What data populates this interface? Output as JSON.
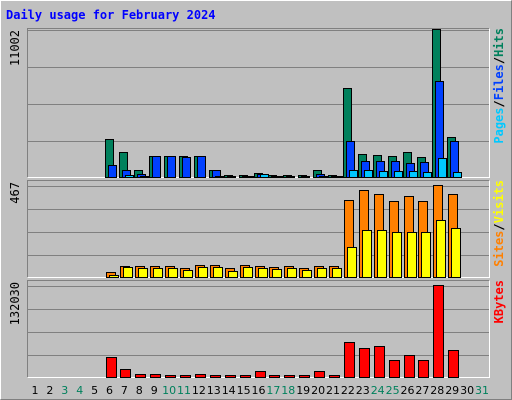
{
  "chart_data": {
    "type": "bar",
    "title": "Daily usage for February 2024",
    "colors": {
      "background": "#c0c0c0",
      "title": "#0000ff",
      "hits": "#00805c",
      "files": "#0040ff",
      "pages": "#00c8ff",
      "visits": "#ffff00",
      "sites": "#ff8000",
      "kbytes": "#ff0000",
      "weekend_label": "#00805c",
      "day_label": "#000000"
    },
    "days": [
      "1",
      "2",
      "3",
      "4",
      "5",
      "6",
      "7",
      "8",
      "9",
      "10",
      "11",
      "12",
      "13",
      "14",
      "15",
      "16",
      "17",
      "18",
      "19",
      "20",
      "21",
      "22",
      "23",
      "24",
      "25",
      "26",
      "27",
      "28",
      "29",
      "30",
      "31"
    ],
    "weekend_days": [
      "3",
      "4",
      "10",
      "11",
      "17",
      "18",
      "24",
      "25",
      "31"
    ],
    "panels": [
      {
        "name": "hits-files-pages",
        "max_label": "11002",
        "ylim": [
          0,
          11002
        ],
        "legend": [
          {
            "text": "Pages",
            "color_key": "pages"
          },
          {
            "text": "/",
            "color_key": "day_label"
          },
          {
            "text": "Files",
            "color_key": "files"
          },
          {
            "text": "/",
            "color_key": "day_label"
          },
          {
            "text": "Hits",
            "color_key": "hits"
          }
        ],
        "series": [
          {
            "name": "Hits",
            "color_key": "hits",
            "values": [
              0,
              0,
              0,
              0,
              0,
              2800,
              1850,
              500,
              1550,
              1550,
              1550,
              1550,
              550,
              150,
              150,
              330,
              150,
              150,
              150,
              550,
              150,
              6600,
              1700,
              1650,
              1550,
              1850,
              1450,
              11002,
              3000,
              0,
              0
            ]
          },
          {
            "name": "Files",
            "color_key": "files",
            "values": [
              0,
              0,
              0,
              0,
              0,
              900,
              500,
              250,
              1550,
              1550,
              1500,
              1550,
              500,
              100,
              100,
              200,
              100,
              100,
              100,
              250,
              100,
              2650,
              1200,
              1200,
              1200,
              1050,
              1100,
              7100,
              2650,
              0,
              0
            ]
          },
          {
            "name": "Pages",
            "color_key": "pages",
            "values": [
              0,
              0,
              0,
              0,
              0,
              0,
              150,
              100,
              0,
              0,
              0,
              0,
              50,
              0,
              50,
              250,
              50,
              0,
              0,
              100,
              50,
              550,
              500,
              450,
              450,
              450,
              400,
              1400,
              400,
              0,
              0
            ]
          }
        ]
      },
      {
        "name": "sites-visits",
        "max_label": "467",
        "ylim": [
          0,
          467
        ],
        "legend": [
          {
            "text": "Sites",
            "color_key": "sites"
          },
          {
            "text": "/",
            "color_key": "day_label"
          },
          {
            "text": "Visits",
            "color_key": "visits"
          }
        ],
        "series": [
          {
            "name": "Sites",
            "color_key": "sites",
            "values": [
              0,
              0,
              0,
              0,
              0,
              25,
              55,
              55,
              55,
              55,
              45,
              60,
              60,
              45,
              60,
              55,
              50,
              55,
              45,
              55,
              55,
              390,
              440,
              420,
              385,
              410,
              385,
              467,
              420,
              0,
              0
            ]
          },
          {
            "name": "Visits",
            "color_key": "visits",
            "values": [
              0,
              0,
              0,
              0,
              0,
              12,
              50,
              45,
              45,
              45,
              35,
              50,
              50,
              30,
              50,
              45,
              40,
              45,
              35,
              45,
              45,
              150,
              240,
              240,
              230,
              230,
              230,
              290,
              250,
              0,
              0
            ]
          }
        ]
      },
      {
        "name": "kbytes",
        "max_label": "132030",
        "ylim": [
          0,
          132030
        ],
        "legend": [
          {
            "text": "KBytes",
            "color_key": "kbytes"
          }
        ],
        "series": [
          {
            "name": "KBytes",
            "color_key": "kbytes",
            "values": [
              0,
              0,
              0,
              0,
              0,
              28000,
              11000,
              4000,
              4000,
              3000,
              3000,
              5000,
              3000,
              3000,
              3000,
              8000,
              3000,
              3000,
              3000,
              8000,
              3000,
              50000,
              41000,
              45000,
              25000,
              32000,
              25000,
              132030,
              39000,
              0,
              0
            ]
          }
        ]
      }
    ]
  }
}
